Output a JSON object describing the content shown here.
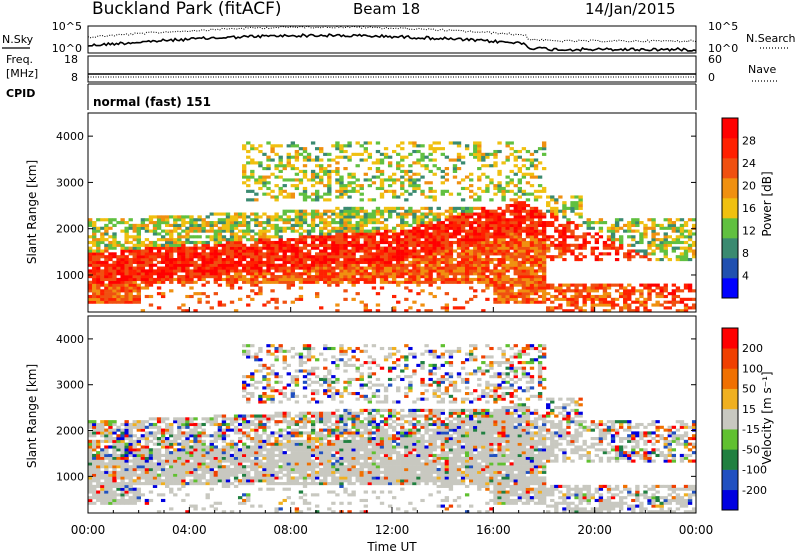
{
  "header": {
    "title": "Buckland Park (fitACF)",
    "beam": "Beam 18",
    "date": "14/Jan/2015"
  },
  "top_panels": {
    "nsky_label": "N.Sky",
    "nsky_ticks": [
      "10^5",
      "10^0"
    ],
    "nsearch_label": "N.Search",
    "nsearch_ticks": [
      "10^5",
      "10^0"
    ],
    "freq_label_1": "Freq.",
    "freq_label_2": "[MHz]",
    "freq_ticks": [
      "18",
      "8"
    ],
    "nave_label": "Nave",
    "nave_ticks": [
      "60",
      "0"
    ],
    "cpid_label": "CPID",
    "cpid_value": "normal (fast) 151"
  },
  "colors": {
    "power_scale": [
      "#0000ff",
      "#2050b0",
      "#3a8a70",
      "#60c040",
      "#f0c010",
      "#f09010",
      "#f05010",
      "#ff2000",
      "#ff0000"
    ],
    "velocity_scale": [
      "#0000e0",
      "#2050c0",
      "#208040",
      "#60c030",
      "#c8c8c0",
      "#f0b020",
      "#f07000",
      "#f04000",
      "#ff0000"
    ],
    "ground_scatter": "#c8c8c0"
  },
  "chart_data": [
    {
      "type": "heatmap",
      "panel": "power",
      "ylabel": "Slant Range [km]",
      "yticks": [
        "1000",
        "2000",
        "3000",
        "4000"
      ],
      "ylim": [
        200,
        4500
      ],
      "xlim": [
        "00:00",
        "24:00"
      ],
      "colorbar_label": "Power [dB]",
      "colorbar_ticks": [
        "4",
        "8",
        "12",
        "16",
        "20",
        "24",
        "28"
      ],
      "colorbar_range": [
        0,
        30
      ]
    },
    {
      "type": "heatmap",
      "panel": "velocity",
      "ylabel": "Slant Range [km]",
      "yticks": [
        "1000",
        "2000",
        "3000",
        "4000"
      ],
      "ylim": [
        200,
        4500
      ],
      "xlim": [
        "00:00",
        "24:00"
      ],
      "xlabel": "Time UT",
      "xticks": [
        "00:00",
        "04:00",
        "08:00",
        "12:00",
        "16:00",
        "20:00",
        "00:00"
      ],
      "colorbar_label": "Velocity [m s⁻¹]",
      "colorbar_ticks": [
        "200",
        "100",
        "50",
        "15",
        "-15",
        "-50",
        "-100",
        "-200"
      ]
    }
  ]
}
